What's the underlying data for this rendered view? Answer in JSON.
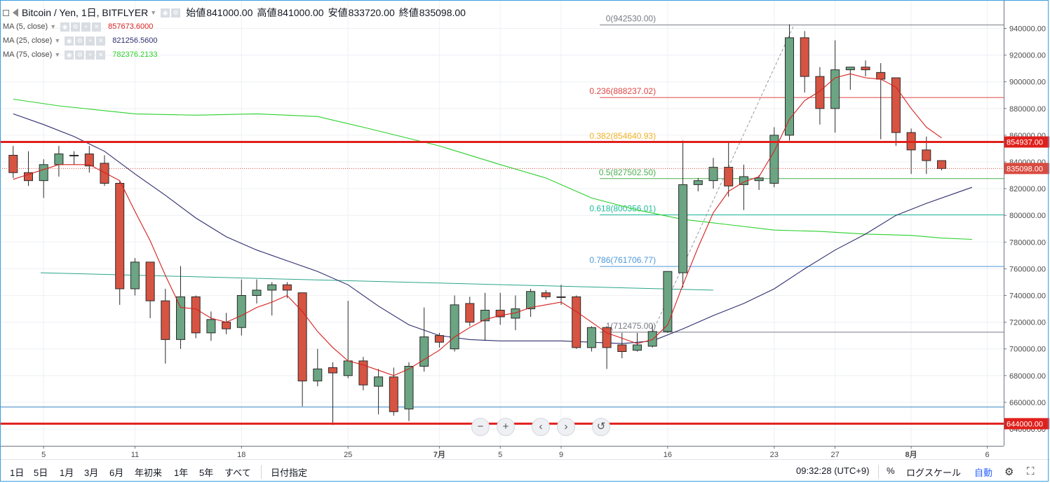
{
  "header": {
    "symbol": "Bitcoin / Yen, 1日, BITFLYER",
    "ohlc": [
      {
        "label": "始値",
        "value": "841000.00"
      },
      {
        "label": "高値",
        "value": "841000.00"
      },
      {
        "label": "安値",
        "value": "833720.00"
      },
      {
        "label": "終値",
        "value": "835098.00"
      }
    ],
    "indicators": [
      {
        "name": "MA (5, close)",
        "value": "857673.6000",
        "color": "#d6201f"
      },
      {
        "name": "MA (25, close)",
        "value": "821256.5600",
        "color": "#2f2e6f"
      },
      {
        "name": "MA (75, close)",
        "value": "782376.2133",
        "color": "#2bd12b"
      }
    ]
  },
  "chart_data": {
    "type": "candlestick",
    "ylim": [
      628000,
      948000
    ],
    "y_ticks": [
      640000,
      660000,
      680000,
      700000,
      720000,
      740000,
      760000,
      780000,
      800000,
      820000,
      840000,
      860000,
      880000,
      900000,
      920000,
      940000
    ],
    "y_tick_labels": [
      "640000.00",
      "660000.00",
      "680000.00",
      "700000.00",
      "720000.00",
      "740000.00",
      "760000.00",
      "780000.00",
      "800000.00",
      "820000.00",
      "840000.00",
      "860000.00",
      "880000.00",
      "900000.00",
      "920000.00",
      "940000.00"
    ],
    "x_labels": [
      {
        "i": 2,
        "text": "5"
      },
      {
        "i": 8,
        "text": "11"
      },
      {
        "i": 15,
        "text": "18"
      },
      {
        "i": 22,
        "text": "25"
      },
      {
        "i": 28,
        "text": "7月"
      },
      {
        "i": 32,
        "text": "5"
      },
      {
        "i": 36,
        "text": "9"
      },
      {
        "i": 43,
        "text": "16"
      },
      {
        "i": 50,
        "text": "23"
      },
      {
        "i": 54,
        "text": "27"
      },
      {
        "i": 59,
        "text": "8月"
      },
      {
        "i": 64,
        "text": "6"
      }
    ],
    "candles": [
      [
        845000,
        852000,
        828000,
        832000
      ],
      [
        832000,
        848000,
        822000,
        826000
      ],
      [
        826000,
        842000,
        813000,
        838000
      ],
      [
        838000,
        852000,
        829000,
        846000
      ],
      [
        845000,
        848000,
        838000,
        845000
      ],
      [
        846000,
        852000,
        832000,
        837000
      ],
      [
        839000,
        845000,
        822000,
        824000
      ],
      [
        824000,
        826000,
        733000,
        745000
      ],
      [
        745000,
        768000,
        740000,
        765000
      ],
      [
        765000,
        765000,
        723000,
        736000
      ],
      [
        736000,
        745000,
        689000,
        707000
      ],
      [
        707000,
        762000,
        700000,
        739000
      ],
      [
        739000,
        740000,
        708000,
        712000
      ],
      [
        712000,
        728000,
        706000,
        722000
      ],
      [
        720000,
        727000,
        711000,
        715000
      ],
      [
        716000,
        752000,
        710000,
        740000
      ],
      [
        740000,
        752000,
        734000,
        744000
      ],
      [
        744000,
        750000,
        725000,
        748000
      ],
      [
        748000,
        750000,
        738000,
        744000
      ],
      [
        742000,
        742000,
        657000,
        676000
      ],
      [
        676000,
        700000,
        672000,
        685000
      ],
      [
        686000,
        690000,
        643000,
        682000
      ],
      [
        680000,
        736000,
        678000,
        691000
      ],
      [
        691000,
        694000,
        669000,
        673000
      ],
      [
        672000,
        685000,
        651000,
        679000
      ],
      [
        679000,
        686000,
        650000,
        653000
      ],
      [
        655000,
        690000,
        646000,
        687000
      ],
      [
        687000,
        731000,
        683000,
        709000
      ],
      [
        710000,
        712000,
        701000,
        705000
      ],
      [
        700000,
        740000,
        698000,
        733000
      ],
      [
        734000,
        739000,
        717000,
        720000
      ],
      [
        721000,
        742000,
        706000,
        729000
      ],
      [
        729000,
        742000,
        718000,
        724000
      ],
      [
        723000,
        740000,
        714000,
        730000
      ],
      [
        730000,
        745000,
        724000,
        743000
      ],
      [
        742000,
        744000,
        737000,
        739000
      ],
      [
        739000,
        748000,
        733000,
        739000
      ],
      [
        739000,
        740000,
        700000,
        701000
      ],
      [
        701000,
        717000,
        698000,
        716000
      ],
      [
        716000,
        717000,
        685000,
        701000
      ],
      [
        703000,
        712000,
        693000,
        698000
      ],
      [
        699000,
        712000,
        698000,
        703000
      ],
      [
        702000,
        718000,
        701000,
        713000
      ],
      [
        713000,
        758000,
        712000,
        758000
      ],
      [
        757000,
        856000,
        746000,
        823000
      ],
      [
        823000,
        828000,
        818000,
        826000
      ],
      [
        826000,
        843000,
        820000,
        836000
      ],
      [
        836000,
        855000,
        814000,
        822000
      ],
      [
        823000,
        838000,
        804000,
        829000
      ],
      [
        826000,
        830000,
        819000,
        828000
      ],
      [
        824000,
        866000,
        821000,
        860000
      ],
      [
        860000,
        943000,
        856000,
        933000
      ],
      [
        933000,
        938000,
        892000,
        904000
      ],
      [
        904000,
        911000,
        868000,
        880000
      ],
      [
        880000,
        931000,
        862000,
        909000
      ],
      [
        909000,
        911000,
        894000,
        911000
      ],
      [
        911000,
        916000,
        904000,
        909000
      ],
      [
        907000,
        914000,
        857000,
        902000
      ],
      [
        903000,
        903000,
        852000,
        862000
      ],
      [
        862000,
        865000,
        831000,
        849000
      ],
      [
        849000,
        859000,
        831000,
        841000
      ],
      [
        841000,
        841000,
        833720,
        835098
      ]
    ],
    "ma5": [
      [
        0,
        827000
      ],
      [
        3,
        838000
      ],
      [
        5,
        838000
      ],
      [
        7,
        826000
      ],
      [
        8,
        803000
      ],
      [
        9,
        781000
      ],
      [
        10,
        755000
      ],
      [
        11,
        731000
      ],
      [
        12,
        730000
      ],
      [
        13,
        723000
      ],
      [
        14,
        720000
      ],
      [
        15,
        725000
      ],
      [
        16,
        731000
      ],
      [
        17,
        735000
      ],
      [
        18,
        740000
      ],
      [
        19,
        728000
      ],
      [
        20,
        713000
      ],
      [
        21,
        701000
      ],
      [
        22,
        691000
      ],
      [
        23,
        688000
      ],
      [
        24,
        684000
      ],
      [
        25,
        680000
      ],
      [
        26,
        685000
      ],
      [
        27,
        692000
      ],
      [
        28,
        699000
      ],
      [
        29,
        709000
      ],
      [
        30,
        716000
      ],
      [
        31,
        722000
      ],
      [
        32,
        725000
      ],
      [
        33,
        727000
      ],
      [
        34,
        731000
      ],
      [
        35,
        733000
      ],
      [
        36,
        735000
      ],
      [
        37,
        728000
      ],
      [
        38,
        720000
      ],
      [
        39,
        712000
      ],
      [
        40,
        708000
      ],
      [
        41,
        704000
      ],
      [
        42,
        707000
      ],
      [
        43,
        718000
      ],
      [
        44,
        748000
      ],
      [
        45,
        776000
      ],
      [
        46,
        802000
      ],
      [
        47,
        818000
      ],
      [
        48,
        825000
      ],
      [
        49,
        829000
      ],
      [
        50,
        848000
      ],
      [
        51,
        872000
      ],
      [
        52,
        886000
      ],
      [
        53,
        893000
      ],
      [
        54,
        903000
      ],
      [
        55,
        906000
      ],
      [
        56,
        903000
      ],
      [
        57,
        902000
      ],
      [
        58,
        896000
      ],
      [
        59,
        880000
      ],
      [
        60,
        866000
      ],
      [
        61,
        858000
      ]
    ],
    "ma25": [
      [
        0,
        876000
      ],
      [
        2,
        868000
      ],
      [
        4,
        859000
      ],
      [
        6,
        848000
      ],
      [
        8,
        831000
      ],
      [
        10,
        815000
      ],
      [
        12,
        798000
      ],
      [
        14,
        784000
      ],
      [
        16,
        774000
      ],
      [
        18,
        766000
      ],
      [
        20,
        758000
      ],
      [
        22,
        748000
      ],
      [
        24,
        732000
      ],
      [
        26,
        718000
      ],
      [
        28,
        710000
      ],
      [
        30,
        707000
      ],
      [
        32,
        706000
      ],
      [
        34,
        706000
      ],
      [
        36,
        706000
      ],
      [
        38,
        705000
      ],
      [
        40,
        704000
      ],
      [
        42,
        706000
      ],
      [
        44,
        715000
      ],
      [
        46,
        725000
      ],
      [
        48,
        734000
      ],
      [
        50,
        745000
      ],
      [
        52,
        760000
      ],
      [
        54,
        774000
      ],
      [
        56,
        786000
      ],
      [
        58,
        800000
      ],
      [
        60,
        809000
      ],
      [
        62,
        817000
      ],
      [
        63,
        821000
      ]
    ],
    "ma75": [
      [
        0,
        887000
      ],
      [
        3,
        882000
      ],
      [
        8,
        876000
      ],
      [
        12,
        875000
      ],
      [
        16,
        876000
      ],
      [
        20,
        874000
      ],
      [
        23,
        866000
      ],
      [
        28,
        852000
      ],
      [
        32,
        838000
      ],
      [
        35,
        828000
      ],
      [
        38,
        813000
      ],
      [
        41,
        804000
      ],
      [
        44,
        797000
      ],
      [
        47,
        793000
      ],
      [
        50,
        789000
      ],
      [
        53,
        788000
      ],
      [
        56,
        786000
      ],
      [
        59,
        785000
      ],
      [
        61,
        783000
      ],
      [
        63,
        782000
      ]
    ],
    "fib_labels": [
      "0(942530.00)",
      "0.236(888237.02)",
      "0.382(854640.93)",
      "0.5(827502.50)",
      "0.618(800356.01)",
      "0.786(761706.77)",
      "1(712475.00)"
    ],
    "fib_values": [
      942530,
      888237.02,
      854640.93,
      827502.5,
      800356.01,
      761706.77,
      712475
    ],
    "fib_colors": [
      "#787b86",
      "#e04545",
      "#f0b325",
      "#4caf50",
      "#1fbc9c",
      "#4d99d9",
      "#787b86"
    ],
    "horizontal_lines": [
      {
        "value": 854937,
        "label": "854937.00",
        "color": "#e0201c"
      },
      {
        "value": 644000,
        "label": "644000.00",
        "color": "#e0201c"
      }
    ],
    "last_price": {
      "value": 835098,
      "label": "835098.00",
      "color": "#d94b3f"
    },
    "colors": {
      "up": "#6ba583",
      "down": "#d75442",
      "outline": "#2a2a2a"
    }
  },
  "nav_buttons": [
    {
      "name": "zoom-out-button",
      "glyph": "−"
    },
    {
      "name": "zoom-in-button",
      "glyph": "+"
    },
    {
      "name": "scroll-left-button",
      "glyph": "‹"
    },
    {
      "name": "scroll-right-button",
      "glyph": "›"
    },
    {
      "name": "reset-button",
      "glyph": "↺"
    }
  ],
  "bottom_bar": {
    "ranges": [
      "1日",
      "5日",
      "1月",
      "3月",
      "6月",
      "年初来",
      "1年",
      "5年",
      "すべて"
    ],
    "goto_date": "日付指定",
    "time": "09:32:28 (UTC+9)",
    "percent": "%",
    "log_scale": "ログスケール",
    "auto": "自動"
  }
}
